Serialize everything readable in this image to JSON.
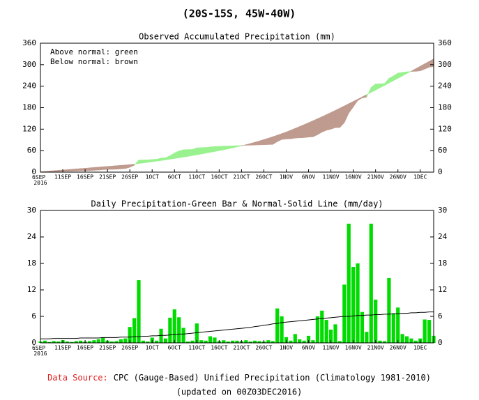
{
  "title": "(20S-15S, 45W-40W)",
  "chart_data": [
    {
      "type": "area",
      "title": "Observed Accumulated Precipitation (mm)",
      "annotations": [
        "Above normal: green",
        "Below normal: brown"
      ],
      "categories": [
        "6SEP 2016",
        null,
        null,
        null,
        null,
        "11SEP",
        null,
        null,
        null,
        null,
        "16SEP",
        null,
        null,
        null,
        null,
        "21SEP",
        null,
        null,
        null,
        null,
        "26SEP",
        null,
        null,
        null,
        null,
        "1OCT",
        null,
        null,
        null,
        null,
        "6OCT",
        null,
        null,
        null,
        null,
        "11OCT",
        null,
        null,
        null,
        null,
        "16OCT",
        null,
        null,
        null,
        null,
        "21OCT",
        null,
        null,
        null,
        null,
        "26OCT",
        null,
        null,
        null,
        null,
        "1NOV",
        null,
        null,
        null,
        null,
        "6NOV",
        null,
        null,
        null,
        null,
        "11NOV",
        null,
        null,
        null,
        null,
        "16NOV",
        null,
        null,
        null,
        null,
        "21NOV",
        null,
        null,
        null,
        null,
        "26NOV",
        null,
        null,
        null,
        null,
        "1DEC",
        null,
        null,
        null
      ],
      "series": [
        {
          "values": [
            0.3,
            0.8,
            1.0,
            1.4,
            1.7,
            2.3,
            2.6,
            2.8,
            3.2,
            3.7,
            4.0,
            4.4,
            5.0,
            5.8,
            7.0,
            7.5,
            7.8,
            8.2,
            9.0,
            10.0,
            13.6,
            19.2,
            33.4,
            33.9,
            34.2,
            35.4,
            35.9,
            39.1,
            40.1,
            45.8,
            53.4,
            59.2,
            62.6,
            62.9,
            63.4,
            67.8,
            68.4,
            68.9,
            70.4,
            71.6,
            72.0,
            72.6,
            72.9,
            73.4,
            73.9,
            74.3,
            74.9,
            75.2,
            75.7,
            76.1,
            76.4,
            77.0,
            77.4,
            85.2,
            91.2,
            92.5,
            93.0,
            95.0,
            95.8,
            96.3,
            97.9,
            98.5,
            104.5,
            111.8,
            117.0,
            120.0,
            124.2,
            124.6,
            137.8,
            164.8,
            182.0,
            200.0,
            207.0,
            209.5,
            236.5,
            246.3,
            246.8,
            247.2,
            261.9,
            268.6,
            276.6,
            278.6,
            280.1,
            281.1,
            281.6,
            282.6,
            287.9,
            293.1,
            294.7
          ]
        },
        {
          "values": [
            1,
            2,
            3,
            4,
            5,
            6,
            7,
            8,
            9,
            10,
            11,
            12,
            13,
            14,
            15,
            16,
            17,
            18,
            19,
            20,
            21,
            22.5,
            24,
            25.6,
            27.2,
            28.9,
            30.6,
            32.4,
            34.2,
            36.1,
            38,
            40,
            42,
            44.1,
            46.2,
            48.4,
            50.6,
            52.9,
            55.2,
            57.6,
            60,
            62.5,
            65,
            67.6,
            70.5,
            73.5,
            76.7,
            80,
            83.5,
            87.1,
            90.9,
            94.8,
            98.9,
            103.1,
            107.5,
            112,
            117,
            122.1,
            127.3,
            132.6,
            138,
            143.5,
            149.1,
            154.8,
            160.6,
            166.5,
            172.5,
            178.6,
            184.8,
            191.1,
            197.4,
            203.7,
            210,
            216.4,
            222.8,
            229.2,
            235.7,
            242.2,
            248.8,
            255.4,
            262,
            268.7,
            275.4,
            282.1,
            288.9,
            295.7,
            302.5,
            309.4,
            316.3
          ]
        }
      ],
      "above_color": "#99f28f",
      "below_color": "#bf9a8e",
      "ylim": [
        0,
        360
      ],
      "yticks": [
        0,
        60,
        120,
        180,
        240,
        300,
        360
      ]
    },
    {
      "type": "bar",
      "title": "Daily Precipitation-Green Bar & Normal-Solid Line (mm/day)",
      "categories": [
        "6SEP 2016",
        null,
        null,
        null,
        null,
        "11SEP",
        null,
        null,
        null,
        null,
        "16SEP",
        null,
        null,
        null,
        null,
        "21SEP",
        null,
        null,
        null,
        null,
        "26SEP",
        null,
        null,
        null,
        null,
        "1OCT",
        null,
        null,
        null,
        null,
        "6OCT",
        null,
        null,
        null,
        null,
        "11OCT",
        null,
        null,
        null,
        null,
        "16OCT",
        null,
        null,
        null,
        null,
        "21OCT",
        null,
        null,
        null,
        null,
        "26OCT",
        null,
        null,
        null,
        null,
        "1NOV",
        null,
        null,
        null,
        null,
        "6NOV",
        null,
        null,
        null,
        null,
        "11NOV",
        null,
        null,
        null,
        null,
        "16NOV",
        null,
        null,
        null,
        null,
        "21NOV",
        null,
        null,
        null,
        null,
        "26NOV",
        null,
        null,
        null,
        null,
        "1DEC",
        null,
        null,
        null
      ],
      "series": [
        {
          "type": "bar",
          "color": "#00dc00",
          "values": [
            0.3,
            0.5,
            0.2,
            0.4,
            0.3,
            0.6,
            0.3,
            0.2,
            0.4,
            0.5,
            0.3,
            0.4,
            0.6,
            0.8,
            1.2,
            0.5,
            0.3,
            0.4,
            0.8,
            1.0,
            3.6,
            5.6,
            14.2,
            0.5,
            0.3,
            1.2,
            0.5,
            3.2,
            1.0,
            5.7,
            7.6,
            5.8,
            3.4,
            0.3,
            0.5,
            4.4,
            0.6,
            0.5,
            1.5,
            1.2,
            0.4,
            0.6,
            0.3,
            0.5,
            0.5,
            0.4,
            0.6,
            0.3,
            0.5,
            0.4,
            0.3,
            0.6,
            0.4,
            7.8,
            6.0,
            1.3,
            0.5,
            2.0,
            0.8,
            0.5,
            1.6,
            0.6,
            6.0,
            7.3,
            5.2,
            3.0,
            4.2,
            0.4,
            13.2,
            27.0,
            17.2,
            18.0,
            7.0,
            2.5,
            27.0,
            9.8,
            0.5,
            0.4,
            14.7,
            6.7,
            8.0,
            2.0,
            1.5,
            1.0,
            0.5,
            1.0,
            5.3,
            5.2,
            1.6
          ]
        },
        {
          "type": "line",
          "color": "#000000",
          "values": [
            0.9,
            0.9,
            0.9,
            1.0,
            1.0,
            1.0,
            1.0,
            1.0,
            1.0,
            1.1,
            1.1,
            1.1,
            1.1,
            1.1,
            1.2,
            1.2,
            1.2,
            1.2,
            1.3,
            1.3,
            1.3,
            1.4,
            1.4,
            1.5,
            1.5,
            1.6,
            1.6,
            1.7,
            1.7,
            1.8,
            1.9,
            2.0,
            2.0,
            2.1,
            2.2,
            2.3,
            2.4,
            2.5,
            2.6,
            2.7,
            2.8,
            2.9,
            3.0,
            3.1,
            3.2,
            3.3,
            3.4,
            3.5,
            3.7,
            3.8,
            4.0,
            4.1,
            4.3,
            4.4,
            4.6,
            4.7,
            4.8,
            4.9,
            5.0,
            5.1,
            5.2,
            5.3,
            5.4,
            5.5,
            5.6,
            5.7,
            5.8,
            5.9,
            6.0,
            6.0,
            6.1,
            6.2,
            6.2,
            6.3,
            6.3,
            6.4,
            6.4,
            6.5,
            6.5,
            6.6,
            6.6,
            6.7,
            6.7,
            6.8,
            6.8,
            6.9,
            6.9,
            7.0,
            7.0
          ]
        }
      ],
      "ylim": [
        0,
        30
      ],
      "yticks": [
        0,
        6,
        12,
        18,
        24,
        30
      ]
    }
  ],
  "footer": {
    "source_label": "Data Source:",
    "source_text": "CPC (Gauge-Based) Unified Precipitation (Climatology 1981-2010)",
    "updated": "(updated on 00Z03DEC2016)"
  }
}
